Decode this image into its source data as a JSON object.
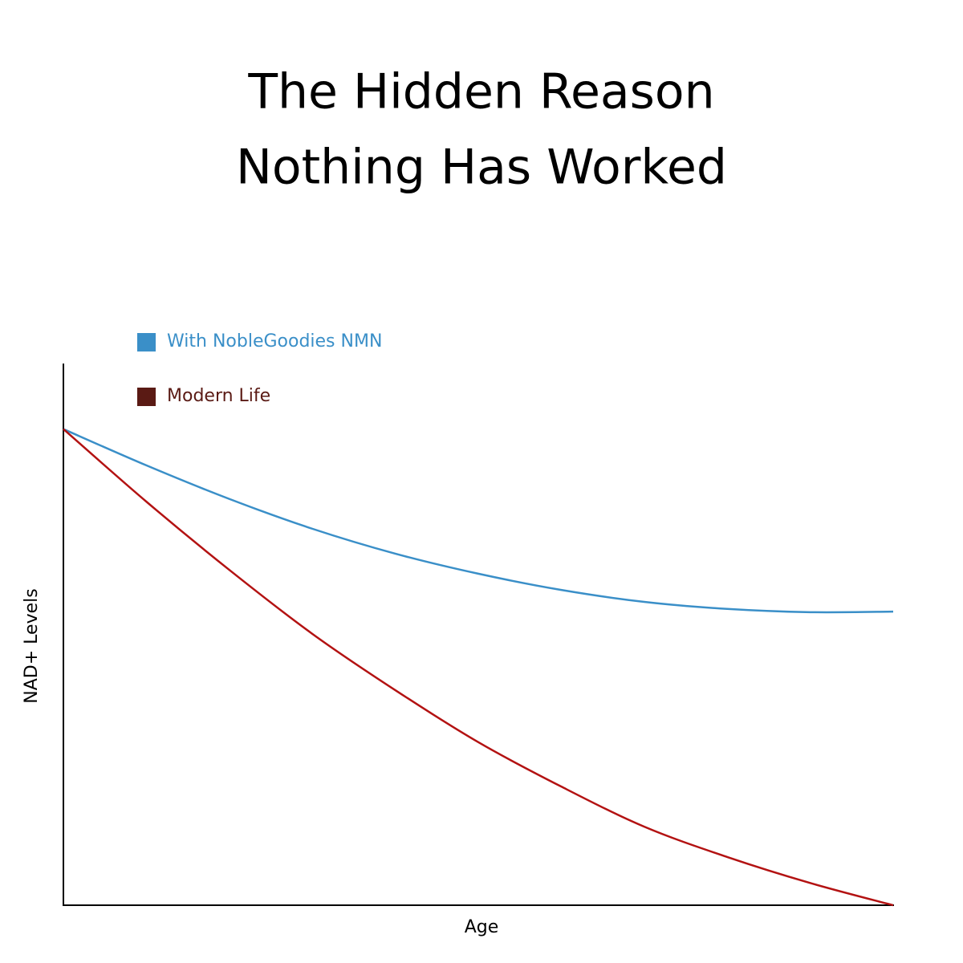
{
  "chart_data": {
    "type": "line",
    "title": [
      "The Hidden Reason",
      "Nothing Has Worked"
    ],
    "x_label": "Age",
    "y_label": "NAD+ Levels",
    "x": [
      0,
      1,
      2,
      3,
      4,
      5,
      6,
      7,
      8,
      9,
      10
    ],
    "series": [
      {
        "name": "With NobleGoodies NMN",
        "color": "#3a8fc8",
        "legend_color": "#3a8fc8",
        "values": [
          87.9,
          81.2,
          75.0,
          69.5,
          64.9,
          61.2,
          58.2,
          56.0,
          54.7,
          54.1,
          54.2
        ]
      },
      {
        "name": "Modern Life",
        "color": "#b31212",
        "legend_color": "#5a1a14",
        "values": [
          87.9,
          74.5,
          61.9,
          50.1,
          39.7,
          30.1,
          21.9,
          14.5,
          8.9,
          4.1,
          0
        ]
      }
    ],
    "xlim": [
      0,
      10
    ],
    "ylim": [
      0,
      100
    ],
    "grid": false,
    "smooth": true
  }
}
